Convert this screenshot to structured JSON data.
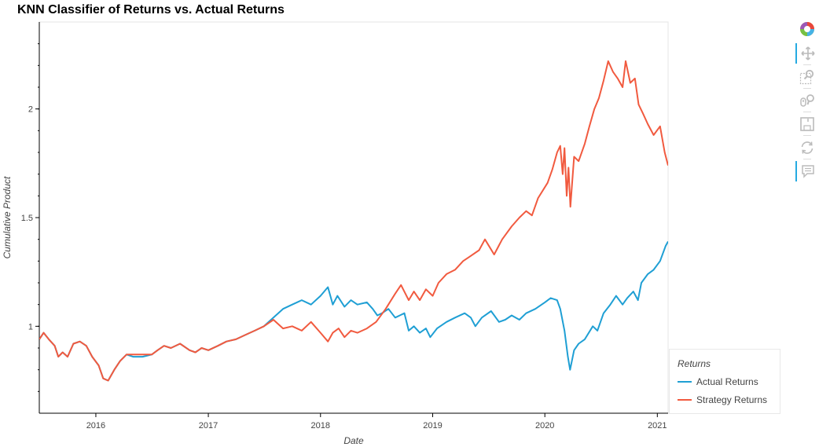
{
  "chart_data": {
    "type": "line",
    "title": "KNN Classifier of Returns vs. Actual Returns",
    "xlabel": "Date",
    "ylabel": "Cumulative Product",
    "xlim": [
      "2015-07-01",
      "2021-02-05"
    ],
    "ylim": [
      0.6,
      2.4
    ],
    "x_ticks": [
      "2016",
      "2017",
      "2018",
      "2019",
      "2020",
      "2021"
    ],
    "y_ticks": [
      "1",
      "1.5",
      "2"
    ],
    "legend": {
      "title": "Returns",
      "position": "bottom-right"
    },
    "grid": false,
    "series": [
      {
        "name": "Actual Returns",
        "color": "#1f9fd4",
        "points": [
          [
            "2015-07-01",
            0.94
          ],
          [
            "2015-07-15",
            0.97
          ],
          [
            "2015-08-01",
            0.94
          ],
          [
            "2015-08-20",
            0.91
          ],
          [
            "2015-09-01",
            0.86
          ],
          [
            "2015-09-15",
            0.88
          ],
          [
            "2015-10-01",
            0.86
          ],
          [
            "2015-10-20",
            0.92
          ],
          [
            "2015-11-10",
            0.93
          ],
          [
            "2015-12-01",
            0.91
          ],
          [
            "2015-12-20",
            0.86
          ],
          [
            "2016-01-10",
            0.82
          ],
          [
            "2016-01-25",
            0.76
          ],
          [
            "2016-02-10",
            0.75
          ],
          [
            "2016-03-01",
            0.8
          ],
          [
            "2016-03-20",
            0.84
          ],
          [
            "2016-04-10",
            0.87
          ],
          [
            "2016-05-01",
            0.86
          ],
          [
            "2016-06-01",
            0.86
          ],
          [
            "2016-07-01",
            0.87
          ],
          [
            "2016-07-20",
            0.89
          ],
          [
            "2016-08-10",
            0.91
          ],
          [
            "2016-09-01",
            0.9
          ],
          [
            "2016-10-01",
            0.92
          ],
          [
            "2016-11-01",
            0.89
          ],
          [
            "2016-11-20",
            0.88
          ],
          [
            "2016-12-10",
            0.9
          ],
          [
            "2017-01-01",
            0.89
          ],
          [
            "2017-02-01",
            0.91
          ],
          [
            "2017-03-01",
            0.93
          ],
          [
            "2017-04-01",
            0.94
          ],
          [
            "2017-05-01",
            0.96
          ],
          [
            "2017-06-01",
            0.98
          ],
          [
            "2017-07-01",
            1.0
          ],
          [
            "2017-08-01",
            1.04
          ],
          [
            "2017-09-01",
            1.08
          ],
          [
            "2017-10-01",
            1.1
          ],
          [
            "2017-11-01",
            1.12
          ],
          [
            "2017-12-01",
            1.1
          ],
          [
            "2018-01-01",
            1.14
          ],
          [
            "2018-01-25",
            1.18
          ],
          [
            "2018-02-10",
            1.1
          ],
          [
            "2018-02-25",
            1.14
          ],
          [
            "2018-03-20",
            1.09
          ],
          [
            "2018-04-10",
            1.12
          ],
          [
            "2018-05-01",
            1.1
          ],
          [
            "2018-06-01",
            1.11
          ],
          [
            "2018-06-20",
            1.08
          ],
          [
            "2018-07-05",
            1.05
          ],
          [
            "2018-07-20",
            1.06
          ],
          [
            "2018-08-10",
            1.08
          ],
          [
            "2018-09-01",
            1.04
          ],
          [
            "2018-10-01",
            1.06
          ],
          [
            "2018-10-15",
            0.98
          ],
          [
            "2018-11-01",
            1.0
          ],
          [
            "2018-11-20",
            0.97
          ],
          [
            "2018-12-10",
            0.99
          ],
          [
            "2018-12-24",
            0.95
          ],
          [
            "2019-01-15",
            0.99
          ],
          [
            "2019-02-15",
            1.02
          ],
          [
            "2019-03-15",
            1.04
          ],
          [
            "2019-04-15",
            1.06
          ],
          [
            "2019-05-05",
            1.04
          ],
          [
            "2019-05-20",
            1.0
          ],
          [
            "2019-06-10",
            1.04
          ],
          [
            "2019-07-10",
            1.07
          ],
          [
            "2019-08-05",
            1.02
          ],
          [
            "2019-08-25",
            1.03
          ],
          [
            "2019-09-15",
            1.05
          ],
          [
            "2019-10-10",
            1.03
          ],
          [
            "2019-11-01",
            1.06
          ],
          [
            "2019-12-01",
            1.08
          ],
          [
            "2020-01-01",
            1.11
          ],
          [
            "2020-01-20",
            1.13
          ],
          [
            "2020-02-10",
            1.12
          ],
          [
            "2020-02-20",
            1.08
          ],
          [
            "2020-03-05",
            0.98
          ],
          [
            "2020-03-16",
            0.86
          ],
          [
            "2020-03-23",
            0.8
          ],
          [
            "2020-04-05",
            0.89
          ],
          [
            "2020-04-20",
            0.92
          ],
          [
            "2020-05-10",
            0.94
          ],
          [
            "2020-06-05",
            1.0
          ],
          [
            "2020-06-20",
            0.98
          ],
          [
            "2020-07-10",
            1.06
          ],
          [
            "2020-08-01",
            1.1
          ],
          [
            "2020-08-20",
            1.14
          ],
          [
            "2020-09-10",
            1.1
          ],
          [
            "2020-09-25",
            1.13
          ],
          [
            "2020-10-15",
            1.16
          ],
          [
            "2020-10-30",
            1.12
          ],
          [
            "2020-11-10",
            1.2
          ],
          [
            "2020-12-01",
            1.24
          ],
          [
            "2020-12-20",
            1.26
          ],
          [
            "2021-01-10",
            1.3
          ],
          [
            "2021-01-28",
            1.37
          ],
          [
            "2021-02-05",
            1.39
          ]
        ]
      },
      {
        "name": "Strategy Returns",
        "color": "#f15a3f",
        "points": [
          [
            "2015-07-01",
            0.94
          ],
          [
            "2015-07-15",
            0.97
          ],
          [
            "2015-08-01",
            0.94
          ],
          [
            "2015-08-20",
            0.91
          ],
          [
            "2015-09-01",
            0.86
          ],
          [
            "2015-09-15",
            0.88
          ],
          [
            "2015-10-01",
            0.86
          ],
          [
            "2015-10-20",
            0.92
          ],
          [
            "2015-11-10",
            0.93
          ],
          [
            "2015-12-01",
            0.91
          ],
          [
            "2015-12-20",
            0.86
          ],
          [
            "2016-01-10",
            0.82
          ],
          [
            "2016-01-25",
            0.76
          ],
          [
            "2016-02-10",
            0.75
          ],
          [
            "2016-03-01",
            0.8
          ],
          [
            "2016-03-20",
            0.84
          ],
          [
            "2016-04-10",
            0.87
          ],
          [
            "2016-05-01",
            0.87
          ],
          [
            "2016-06-01",
            0.87
          ],
          [
            "2016-07-01",
            0.87
          ],
          [
            "2016-07-20",
            0.89
          ],
          [
            "2016-08-10",
            0.91
          ],
          [
            "2016-09-01",
            0.9
          ],
          [
            "2016-10-01",
            0.92
          ],
          [
            "2016-11-01",
            0.89
          ],
          [
            "2016-11-20",
            0.88
          ],
          [
            "2016-12-10",
            0.9
          ],
          [
            "2017-01-01",
            0.89
          ],
          [
            "2017-02-01",
            0.91
          ],
          [
            "2017-03-01",
            0.93
          ],
          [
            "2017-04-01",
            0.94
          ],
          [
            "2017-05-01",
            0.96
          ],
          [
            "2017-06-01",
            0.98
          ],
          [
            "2017-07-01",
            1.0
          ],
          [
            "2017-08-01",
            1.03
          ],
          [
            "2017-09-01",
            0.99
          ],
          [
            "2017-10-01",
            1.0
          ],
          [
            "2017-11-01",
            0.98
          ],
          [
            "2017-12-01",
            1.02
          ],
          [
            "2018-01-01",
            0.97
          ],
          [
            "2018-01-25",
            0.93
          ],
          [
            "2018-02-10",
            0.97
          ],
          [
            "2018-03-01",
            0.99
          ],
          [
            "2018-03-20",
            0.95
          ],
          [
            "2018-04-10",
            0.98
          ],
          [
            "2018-05-01",
            0.97
          ],
          [
            "2018-06-01",
            0.99
          ],
          [
            "2018-07-01",
            1.02
          ],
          [
            "2018-08-01",
            1.08
          ],
          [
            "2018-09-01",
            1.15
          ],
          [
            "2018-09-20",
            1.19
          ],
          [
            "2018-10-15",
            1.12
          ],
          [
            "2018-11-01",
            1.16
          ],
          [
            "2018-11-20",
            1.12
          ],
          [
            "2018-12-10",
            1.17
          ],
          [
            "2019-01-01",
            1.14
          ],
          [
            "2019-01-20",
            1.2
          ],
          [
            "2019-02-15",
            1.24
          ],
          [
            "2019-03-15",
            1.26
          ],
          [
            "2019-04-10",
            1.3
          ],
          [
            "2019-05-01",
            1.32
          ],
          [
            "2019-06-01",
            1.35
          ],
          [
            "2019-06-20",
            1.4
          ],
          [
            "2019-07-20",
            1.33
          ],
          [
            "2019-08-15",
            1.4
          ],
          [
            "2019-09-15",
            1.46
          ],
          [
            "2019-10-10",
            1.5
          ],
          [
            "2019-11-01",
            1.53
          ],
          [
            "2019-11-20",
            1.51
          ],
          [
            "2019-12-10",
            1.59
          ],
          [
            "2020-01-10",
            1.66
          ],
          [
            "2020-01-25",
            1.72
          ],
          [
            "2020-02-10",
            1.8
          ],
          [
            "2020-02-20",
            1.83
          ],
          [
            "2020-02-28",
            1.7
          ],
          [
            "2020-03-05",
            1.82
          ],
          [
            "2020-03-12",
            1.6
          ],
          [
            "2020-03-18",
            1.73
          ],
          [
            "2020-03-24",
            1.55
          ],
          [
            "2020-04-05",
            1.78
          ],
          [
            "2020-04-20",
            1.76
          ],
          [
            "2020-05-10",
            1.84
          ],
          [
            "2020-05-25",
            1.92
          ],
          [
            "2020-06-10",
            2.0
          ],
          [
            "2020-06-25",
            2.05
          ],
          [
            "2020-07-10",
            2.13
          ],
          [
            "2020-07-25",
            2.22
          ],
          [
            "2020-08-10",
            2.17
          ],
          [
            "2020-08-25",
            2.14
          ],
          [
            "2020-09-10",
            2.1
          ],
          [
            "2020-09-20",
            2.22
          ],
          [
            "2020-10-05",
            2.12
          ],
          [
            "2020-10-20",
            2.14
          ],
          [
            "2020-11-01",
            2.02
          ],
          [
            "2020-11-15",
            1.98
          ],
          [
            "2020-12-01",
            1.93
          ],
          [
            "2020-12-20",
            1.88
          ],
          [
            "2021-01-10",
            1.92
          ],
          [
            "2021-01-25",
            1.8
          ],
          [
            "2021-02-05",
            1.74
          ]
        ]
      }
    ]
  },
  "toolbar": {
    "tools": [
      {
        "name": "bokeh-logo-icon"
      },
      {
        "name": "pan-icon",
        "active": true
      },
      {
        "name": "box-zoom-icon"
      },
      {
        "name": "wheel-zoom-icon"
      },
      {
        "name": "save-icon"
      },
      {
        "name": "reset-icon"
      },
      {
        "name": "hover-icon",
        "active": true
      }
    ]
  }
}
